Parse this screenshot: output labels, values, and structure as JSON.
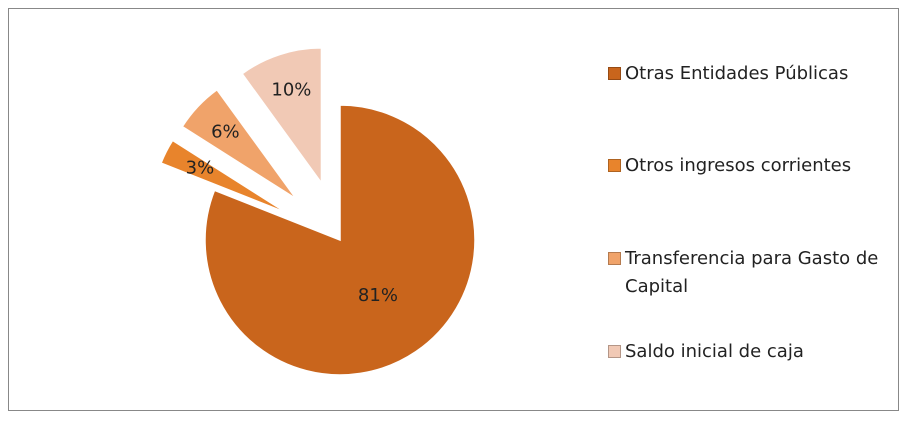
{
  "chart_data": {
    "type": "pie",
    "categories": [
      "Otras Entidades Públicas",
      "Otros ingresos corrientes",
      "Transferencia para Gasto de Capital",
      "Saldo inicial de caja"
    ],
    "values": [
      81,
      3,
      6,
      10
    ],
    "value_labels": [
      "81%",
      "3%",
      "6%",
      "10%"
    ],
    "colors": [
      "#c9651c",
      "#e8842c",
      "#f0a36a",
      "#f1c9b5"
    ],
    "legend": "right"
  }
}
